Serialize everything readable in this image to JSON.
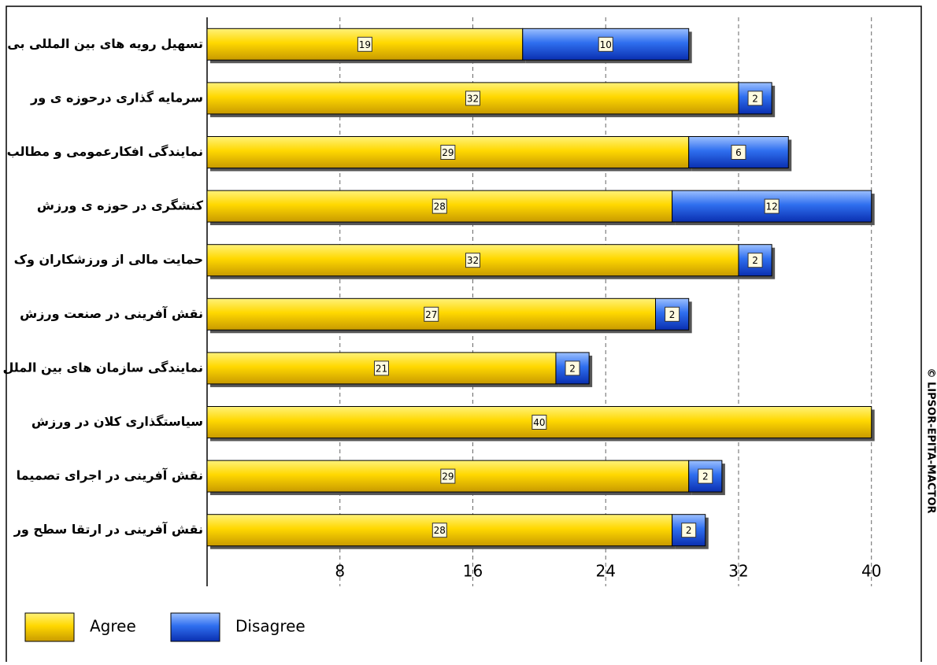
{
  "chart_data": {
    "type": "stacked-bar-horizontal",
    "categories": [
      "تسهیل رویه های بین المللی بی",
      "سرمایه گذاری درحوزه ی ور",
      "نمایندگی افکارعمومی و مطالب",
      "کنشگری در حوزه ی ورزش",
      "حمایت مالی از ورزشکاران وک",
      "نقش آفرینی در صنعت ورزش",
      "نمایندگی سازمان های بین الملل",
      "سیاستگذاری کلان در ورزش",
      "نقش آفرینی در اجرای تصمیما",
      "نقش آفرینی در ارتقا سطح ور"
    ],
    "series": [
      {
        "name": "Agree",
        "color": "#ffd800",
        "values": [
          19,
          32,
          29,
          28,
          32,
          27,
          21,
          40,
          29,
          28
        ]
      },
      {
        "name": "Disagree",
        "color": "#2f6fef",
        "values": [
          10,
          2,
          6,
          12,
          2,
          2,
          2,
          0,
          2,
          2
        ]
      }
    ],
    "xlim": [
      0,
      43
    ],
    "xticks": [
      8,
      16,
      24,
      32,
      40
    ],
    "grid": true,
    "legend": "bottom-left",
    "watermark": "© LIPSOR-EPITA-MACTOR"
  }
}
